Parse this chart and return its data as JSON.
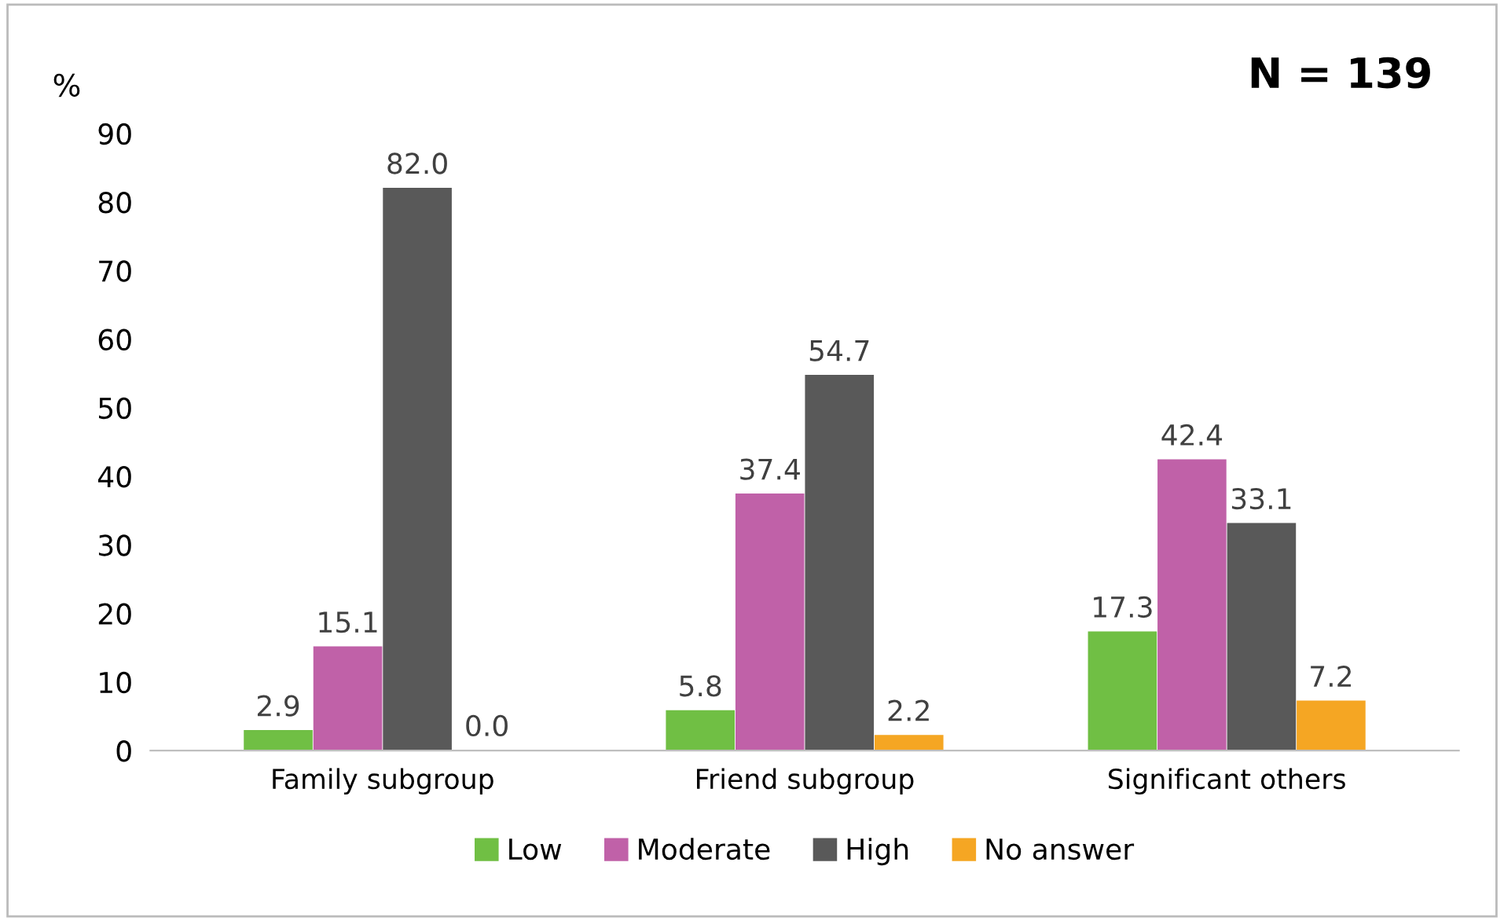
{
  "chart_data": {
    "type": "bar",
    "ylabel": "%",
    "categories": [
      "Family subgroup",
      "Friend subgroup",
      "Significant others"
    ],
    "series": [
      {
        "name": "Low",
        "color": "#70bf44",
        "values": [
          2.9,
          5.8,
          17.3
        ],
        "value_labels": [
          "2.9",
          "5.8",
          "17.3"
        ]
      },
      {
        "name": "Moderate",
        "color": "#c061a8",
        "values": [
          15.1,
          37.4,
          42.4
        ],
        "value_labels": [
          "15.1",
          "37.4",
          "42.4"
        ]
      },
      {
        "name": "High",
        "color": "#595959",
        "values": [
          82.0,
          54.7,
          33.1
        ],
        "value_labels": [
          "82.0",
          "54.7",
          "33.1"
        ]
      },
      {
        "name": "No answer",
        "color": "#f5a623",
        "values": [
          0.0,
          2.2,
          7.2
        ],
        "value_labels": [
          "0.0",
          "2.2",
          "7.2"
        ]
      }
    ],
    "ylim": [
      0,
      90
    ],
    "yticks": [
      0,
      10,
      20,
      30,
      40,
      50,
      60,
      70,
      80,
      90
    ],
    "grid": false,
    "legend": "bottom",
    "annotations": [
      "N = 139"
    ]
  }
}
